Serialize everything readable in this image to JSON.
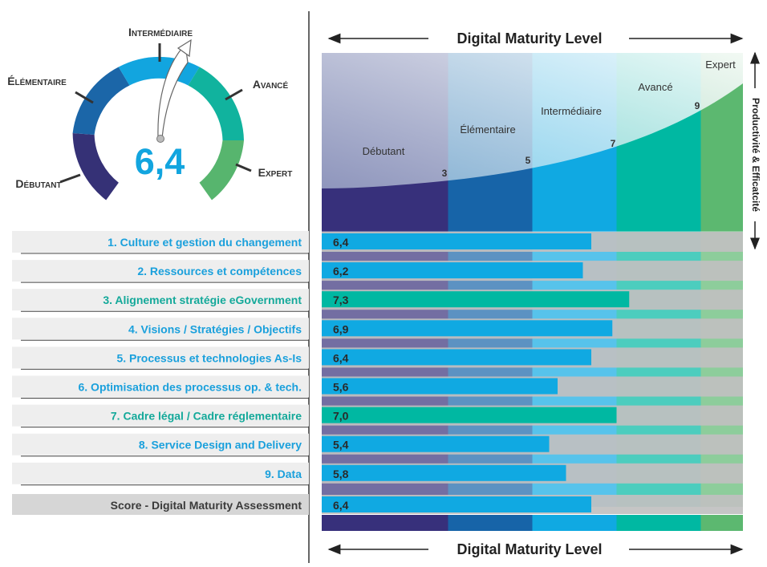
{
  "header": {
    "title": "Digital Maturity Level"
  },
  "footer": {
    "title": "Digital Maturity Level"
  },
  "y_axis_label": "Productivité & Efficatcité",
  "gauge": {
    "score_label": "6,4",
    "value": 6.4,
    "levels": [
      "Débutant",
      "Élémentaire",
      "Intermédiaire",
      "Avancé",
      "Expert"
    ]
  },
  "chart_data": {
    "type": "bar",
    "orientation": "horizontal",
    "title": "Digital Maturity Level",
    "xlabel": "Digital Maturity Level",
    "ylabel": "Productivité & Efficatcité",
    "xlim": [
      0,
      10
    ],
    "level_bands": [
      {
        "name": "Débutant",
        "from": 0,
        "to": 3,
        "color": "#37307b"
      },
      {
        "name": "Élémentaire",
        "from": 3,
        "to": 5,
        "color": "#1764a8"
      },
      {
        "name": "Intermédiaire",
        "from": 5,
        "to": 7,
        "color": "#10a9e2"
      },
      {
        "name": "Avancé",
        "from": 7,
        "to": 9,
        "color": "#00b8a2"
      },
      {
        "name": "Expert",
        "from": 9,
        "to": 10,
        "color": "#5cb870"
      }
    ],
    "thresholds": [
      "3",
      "5",
      "7",
      "9"
    ],
    "categories": [
      "1. Culture et gestion du changement",
      "2. Ressources et compétences",
      "3. Alignement stratégie eGovernment",
      "4. Visions / Stratégies / Objectifs",
      "5. Processus et technologies As-Is",
      "6. Optimisation des processus op. & tech.",
      "7. Cadre légal / Cadre réglementaire",
      "8. Service Design and Delivery",
      "9. Data"
    ],
    "values": [
      6.4,
      6.2,
      7.3,
      6.9,
      6.4,
      5.6,
      7.0,
      5.4,
      5.8
    ],
    "value_labels": [
      "6,4",
      "6,2",
      "7,3",
      "6,9",
      "6,4",
      "5,6",
      "7,0",
      "5,4",
      "5,8"
    ],
    "score": {
      "label": "Score - Digital Maturity Assessment",
      "value": 6.4,
      "value_label": "6,4"
    }
  },
  "colors": {
    "bar_blue": "#10a9e2",
    "bar_teal": "#00b8a2",
    "label_blue": "#1aa0dc",
    "label_teal": "#14a99a",
    "score_text": "#3a3a3a"
  }
}
